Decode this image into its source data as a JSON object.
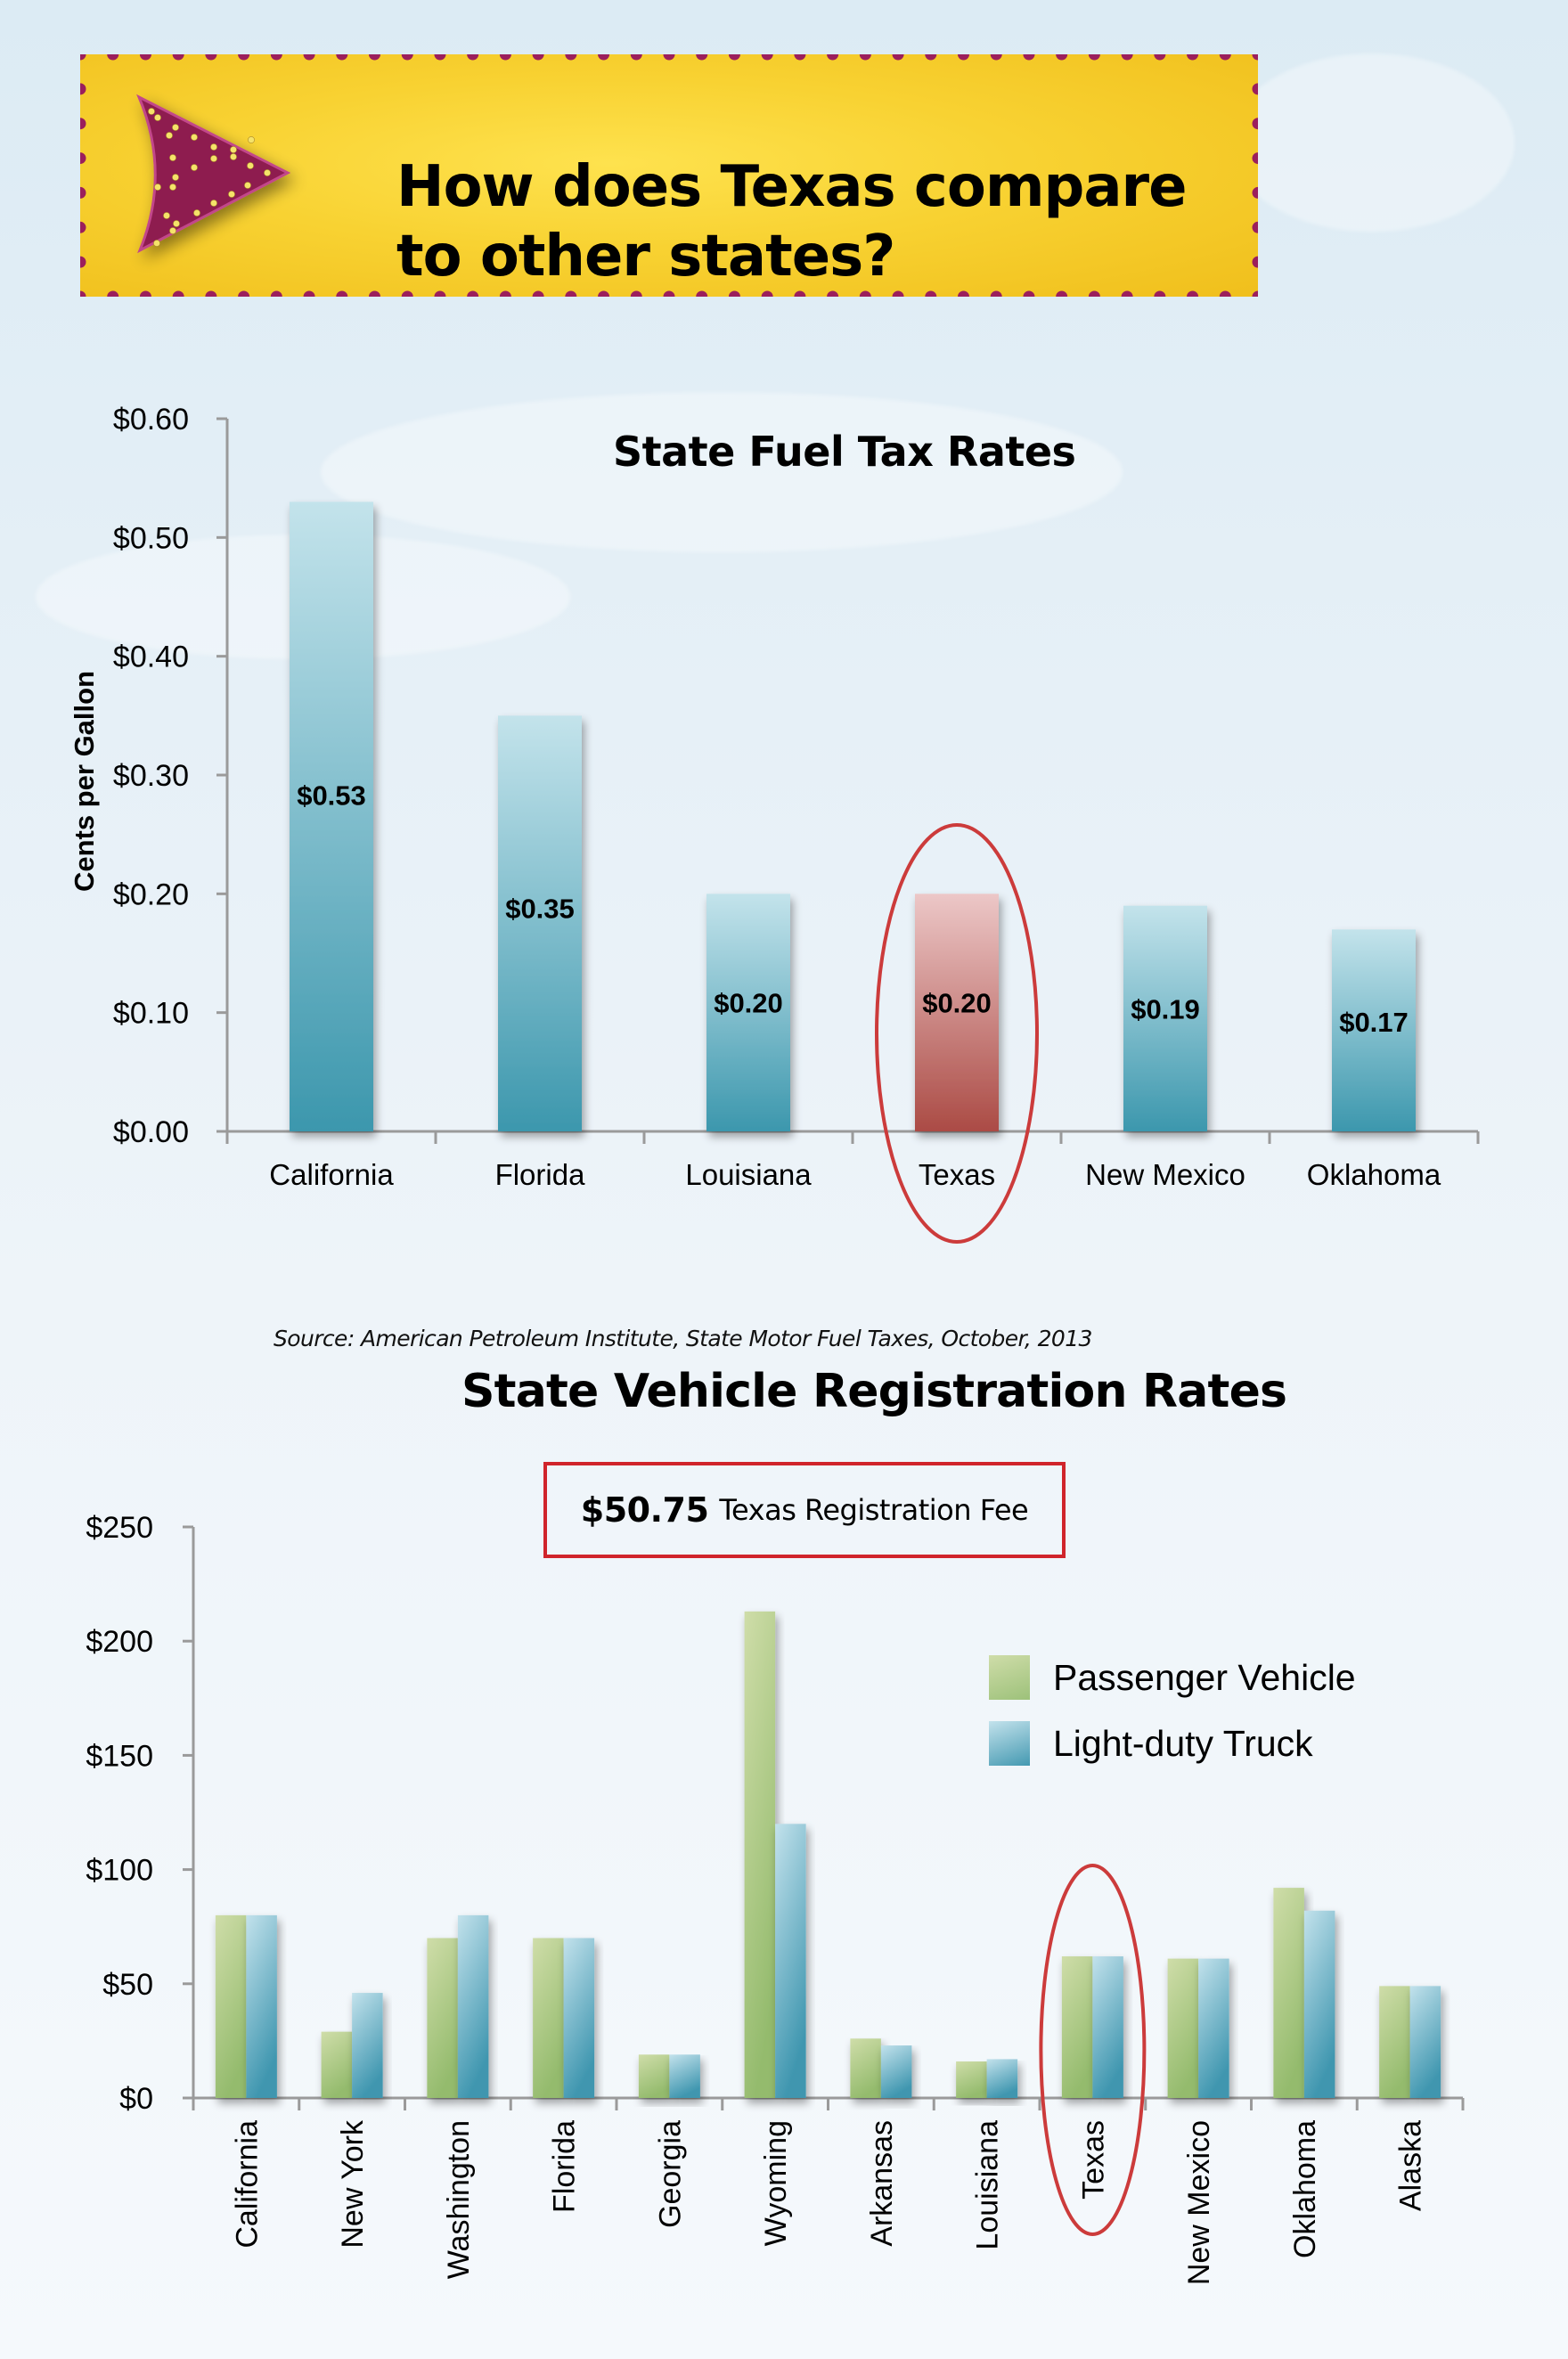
{
  "banner": {
    "title_line1": "How does Texas compare",
    "title_line2": "to other states?",
    "colors": {
      "background": "#f8d232",
      "dots": "#9b1f5c",
      "arrow": "#8e1a4f",
      "arrow_lights": "#f5e36a"
    }
  },
  "source_note": "Source: American Petroleum Institute, State Motor Fuel Taxes, October, 2013",
  "fee_box": {
    "amount": "$50.75",
    "label": "Texas Registration Fee",
    "border_color": "#d0242b"
  },
  "highlight_color": "#cc3b3b",
  "chart_data": [
    {
      "type": "bar",
      "title": "State Fuel Tax Rates",
      "xlabel": "",
      "ylabel": "Cents per Gallon",
      "categories": [
        "California",
        "Florida",
        "Louisiana",
        "Texas",
        "New Mexico",
        "Oklahoma"
      ],
      "values": [
        0.53,
        0.35,
        0.2,
        0.2,
        0.19,
        0.17
      ],
      "data_labels": [
        "$0.53",
        "$0.35",
        "$0.20",
        "$0.20",
        "$0.19",
        "$0.17"
      ],
      "highlight": "Texas",
      "ylim": [
        0,
        0.6
      ],
      "yticks": [
        0,
        0.1,
        0.2,
        0.3,
        0.4,
        0.5,
        0.6
      ],
      "ytick_labels": [
        "$0.00",
        "$0.10",
        "$0.20",
        "$0.30",
        "$0.40",
        "$0.50",
        "$0.60"
      ],
      "grid": false,
      "colors": {
        "bar_top": "#c3e3eb",
        "bar_bottom": "#3c97ad",
        "highlight_top": "#ecc7c7",
        "highlight_bottom": "#ab4b45"
      }
    },
    {
      "type": "bar",
      "title": "State Vehicle Registration Rates",
      "xlabel": "",
      "ylabel": "",
      "categories": [
        "California",
        "New York",
        "Washington",
        "Florida",
        "Georgia",
        "Wyoming",
        "Arkansas",
        "Louisiana",
        "Texas",
        "New Mexico",
        "Oklahoma",
        "Alaska"
      ],
      "series": [
        {
          "name": "Passenger Vehicle",
          "values": [
            80,
            29,
            70,
            70,
            19,
            213,
            26,
            16,
            62,
            61,
            92,
            49
          ],
          "color_top": "#cfdda9",
          "color_bottom": "#94bb6d"
        },
        {
          "name": "Light-duty Truck",
          "values": [
            80,
            46,
            80,
            70,
            19,
            120,
            23,
            17,
            62,
            61,
            82,
            49
          ],
          "color_top": "#c3e2ec",
          "color_bottom": "#3f96af"
        }
      ],
      "highlight": "Texas",
      "ylim": [
        0,
        250
      ],
      "yticks": [
        0,
        50,
        100,
        150,
        200,
        250
      ],
      "ytick_labels": [
        "$0",
        "$50",
        "$100",
        "$150",
        "$200",
        "$250"
      ],
      "legend_position": "top-right",
      "grid": false
    }
  ]
}
